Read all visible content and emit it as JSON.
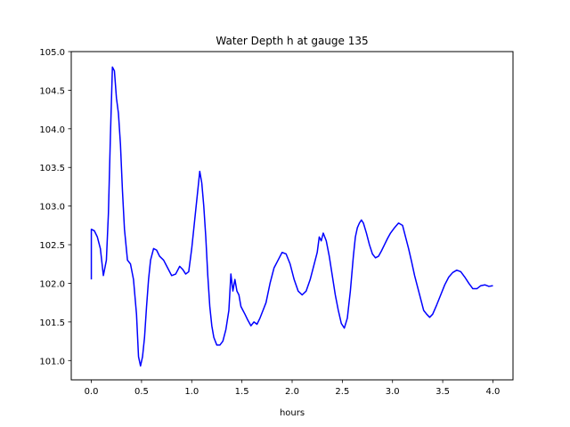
{
  "chart_data": {
    "type": "line",
    "title": "Water Depth h at gauge 135",
    "xlabel": "hours",
    "ylabel": "",
    "xlim": [
      -0.2,
      4.2
    ],
    "ylim": [
      100.75,
      105.0
    ],
    "grid": false,
    "xticks": [
      0.0,
      0.5,
      1.0,
      1.5,
      2.0,
      2.5,
      3.0,
      3.5,
      4.0
    ],
    "xtick_labels": [
      "0.0",
      "0.5",
      "1.0",
      "1.5",
      "2.0",
      "2.5",
      "3.0",
      "3.5",
      "4.0"
    ],
    "yticks": [
      101.0,
      101.5,
      102.0,
      102.5,
      103.0,
      103.5,
      104.0,
      104.5,
      105.0
    ],
    "ytick_labels": [
      "101.0",
      "101.5",
      "102.0",
      "102.5",
      "103.0",
      "103.5",
      "104.0",
      "104.5",
      "105.0"
    ],
    "series": [
      {
        "color": "#0000ff",
        "x": [
          0.0,
          0.0,
          0.03,
          0.06,
          0.09,
          0.12,
          0.15,
          0.17,
          0.19,
          0.21,
          0.23,
          0.25,
          0.27,
          0.29,
          0.31,
          0.33,
          0.36,
          0.39,
          0.42,
          0.45,
          0.47,
          0.49,
          0.51,
          0.53,
          0.55,
          0.57,
          0.59,
          0.62,
          0.65,
          0.68,
          0.72,
          0.76,
          0.8,
          0.84,
          0.88,
          0.91,
          0.94,
          0.97,
          1.0,
          1.02,
          1.04,
          1.06,
          1.08,
          1.1,
          1.12,
          1.14,
          1.16,
          1.18,
          1.2,
          1.22,
          1.25,
          1.28,
          1.31,
          1.34,
          1.37,
          1.39,
          1.41,
          1.43,
          1.45,
          1.47,
          1.49,
          1.51,
          1.53,
          1.56,
          1.59,
          1.62,
          1.65,
          1.68,
          1.71,
          1.74,
          1.78,
          1.82,
          1.86,
          1.9,
          1.94,
          1.98,
          2.02,
          2.06,
          2.1,
          2.14,
          2.18,
          2.22,
          2.25,
          2.27,
          2.29,
          2.31,
          2.34,
          2.37,
          2.4,
          2.43,
          2.46,
          2.49,
          2.52,
          2.55,
          2.58,
          2.61,
          2.63,
          2.65,
          2.67,
          2.69,
          2.71,
          2.74,
          2.77,
          2.8,
          2.83,
          2.86,
          2.89,
          2.92,
          2.95,
          2.98,
          3.02,
          3.06,
          3.1,
          3.13,
          3.16,
          3.19,
          3.22,
          3.25,
          3.28,
          3.31,
          3.34,
          3.37,
          3.4,
          3.44,
          3.48,
          3.52,
          3.56,
          3.6,
          3.64,
          3.68,
          3.72,
          3.76,
          3.8,
          3.84,
          3.88,
          3.92,
          3.96,
          4.0
        ],
        "y": [
          102.05,
          102.7,
          102.68,
          102.6,
          102.45,
          102.1,
          102.3,
          102.9,
          103.9,
          104.8,
          104.75,
          104.4,
          104.2,
          103.8,
          103.2,
          102.7,
          102.3,
          102.25,
          102.05,
          101.6,
          101.05,
          100.93,
          101.05,
          101.3,
          101.7,
          102.05,
          102.3,
          102.45,
          102.43,
          102.35,
          102.3,
          102.2,
          102.1,
          102.12,
          102.22,
          102.18,
          102.12,
          102.15,
          102.45,
          102.7,
          102.95,
          103.2,
          103.45,
          103.3,
          103.0,
          102.6,
          102.1,
          101.7,
          101.45,
          101.3,
          101.2,
          101.2,
          101.25,
          101.4,
          101.65,
          102.12,
          101.9,
          102.05,
          101.9,
          101.85,
          101.7,
          101.65,
          101.6,
          101.52,
          101.45,
          101.5,
          101.47,
          101.55,
          101.65,
          101.75,
          102.0,
          102.2,
          102.3,
          102.4,
          102.38,
          102.25,
          102.05,
          101.9,
          101.85,
          101.9,
          102.05,
          102.25,
          102.4,
          102.6,
          102.55,
          102.65,
          102.55,
          102.35,
          102.1,
          101.85,
          101.65,
          101.48,
          101.42,
          101.55,
          101.9,
          102.35,
          102.6,
          102.72,
          102.78,
          102.82,
          102.78,
          102.65,
          102.5,
          102.38,
          102.33,
          102.35,
          102.42,
          102.5,
          102.58,
          102.65,
          102.72,
          102.78,
          102.75,
          102.6,
          102.45,
          102.28,
          102.1,
          101.95,
          101.8,
          101.65,
          101.6,
          101.56,
          101.6,
          101.72,
          101.85,
          101.98,
          102.08,
          102.14,
          102.17,
          102.15,
          102.08,
          102.0,
          101.93,
          101.93,
          101.97,
          101.98,
          101.96,
          101.97
        ]
      }
    ]
  }
}
